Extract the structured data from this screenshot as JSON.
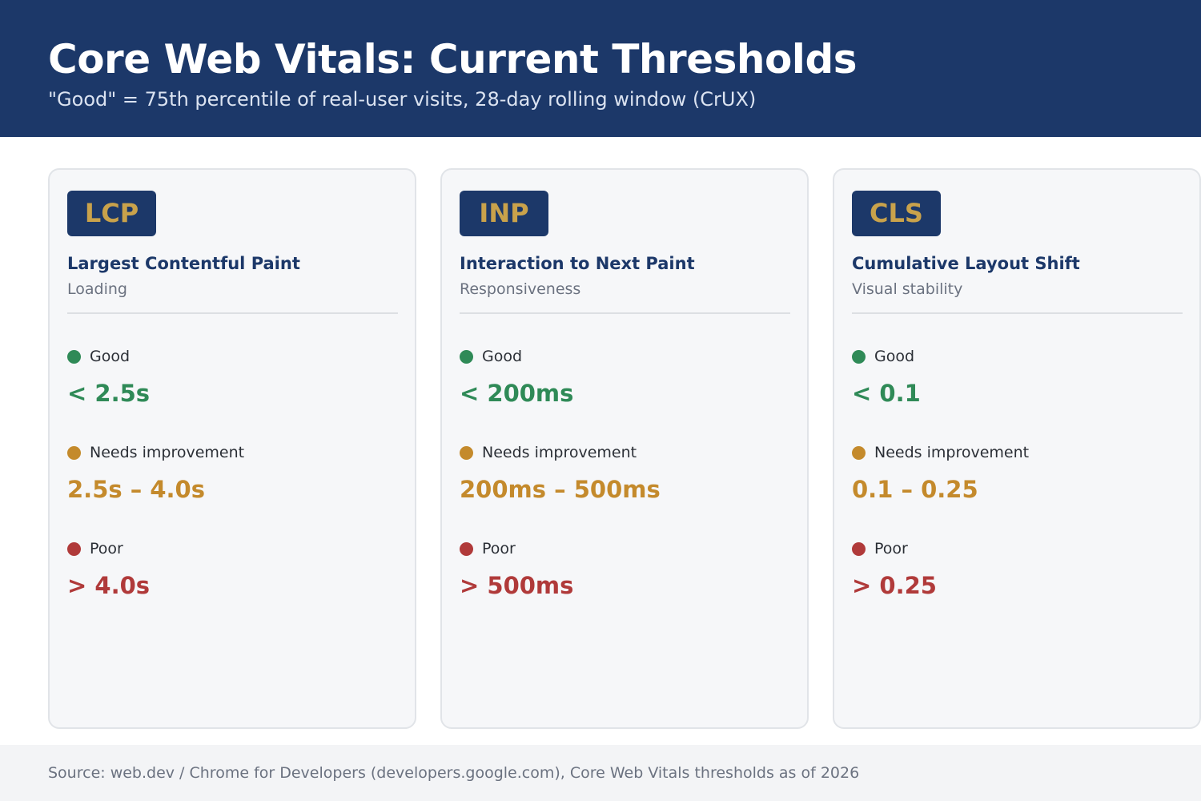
{
  "header": {
    "title": "Core Web Vitals: Current Thresholds",
    "subtitle": "\"Good\" = 75th percentile of real-user visits, 28-day rolling window (CrUX)"
  },
  "colors": {
    "header_bg": "#1c3869",
    "badge_text": "#c9a24b",
    "good": "#2f8a57",
    "needs_improvement": "#c48a2c",
    "poor": "#b03a3a"
  },
  "metrics": [
    {
      "abbr": "LCP",
      "name": "Largest Contentful Paint",
      "category": "Loading",
      "tiers": {
        "good": {
          "label": "Good",
          "value": "< 2.5s"
        },
        "needs_improvement": {
          "label": "Needs improvement",
          "value": "2.5s – 4.0s"
        },
        "poor": {
          "label": "Poor",
          "value": "> 4.0s"
        }
      }
    },
    {
      "abbr": "INP",
      "name": "Interaction to Next Paint",
      "category": "Responsiveness",
      "tiers": {
        "good": {
          "label": "Good",
          "value": "< 200ms"
        },
        "needs_improvement": {
          "label": "Needs improvement",
          "value": "200ms – 500ms"
        },
        "poor": {
          "label": "Poor",
          "value": "> 500ms"
        }
      }
    },
    {
      "abbr": "CLS",
      "name": "Cumulative Layout Shift",
      "category": "Visual stability",
      "tiers": {
        "good": {
          "label": "Good",
          "value": "< 0.1"
        },
        "needs_improvement": {
          "label": "Needs improvement",
          "value": "0.1 – 0.25"
        },
        "poor": {
          "label": "Poor",
          "value": "> 0.25"
        }
      }
    }
  ],
  "footer": {
    "source": "Source: web.dev / Chrome for Developers (developers.google.com), Core Web Vitals thresholds as of 2026"
  }
}
